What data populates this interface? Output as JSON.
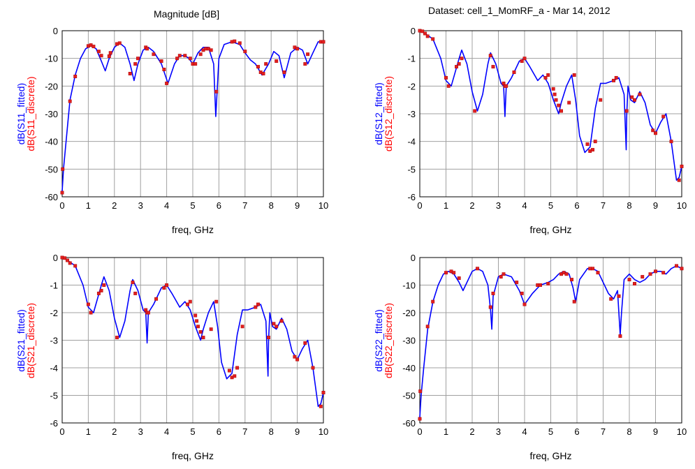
{
  "colors": {
    "fitted": "#0000ff",
    "discrete": "#ff0000",
    "grid": "#a0a0a0",
    "marker": "#e02020"
  },
  "header": {
    "left_title": "Magnitude [dB]",
    "right_title": "Dataset: cell_1_MomRF_a - Mar 14, 2012"
  },
  "chart_data": [
    {
      "type": "line",
      "xlabel": "freq, GHz",
      "ylabel_fitted": "dB(S11_fitted)",
      "ylabel_discrete": "dB(S11_discrete)",
      "xlim": [
        0,
        10
      ],
      "ylim": [
        -60,
        0
      ],
      "grid": true,
      "xticks": [
        "0",
        "1",
        "2",
        "3",
        "4",
        "5",
        "6",
        "7",
        "8",
        "9",
        "10"
      ],
      "yticks": [
        "-60",
        "-50",
        "-40",
        "-30",
        "-20",
        "-10",
        "0"
      ],
      "series": [
        {
          "name": "dB(S11_fitted)",
          "x": [
            0,
            0.05,
            0.15,
            0.3,
            0.5,
            0.7,
            0.9,
            1.1,
            1.3,
            1.5,
            1.65,
            1.8,
            2.0,
            2.2,
            2.4,
            2.6,
            2.75,
            2.9,
            3.1,
            3.3,
            3.5,
            3.8,
            4.05,
            4.3,
            4.5,
            4.7,
            4.85,
            5.0,
            5.2,
            5.4,
            5.6,
            5.8,
            5.88,
            5.92,
            6.0,
            6.2,
            6.5,
            6.8,
            7.0,
            7.2,
            7.4,
            7.65,
            7.9,
            8.1,
            8.3,
            8.5,
            8.75,
            9.0,
            9.2,
            9.4,
            9.6,
            9.8,
            10
          ],
          "y": [
            -58,
            -50,
            -40,
            -25,
            -16,
            -10,
            -6.5,
            -5.5,
            -6.5,
            -11,
            -14.5,
            -10,
            -6,
            -4.5,
            -6,
            -12,
            -18,
            -12,
            -7,
            -6,
            -7.5,
            -12,
            -19,
            -12,
            -9,
            -9,
            -10,
            -12,
            -8,
            -6,
            -6,
            -12,
            -31,
            -24,
            -10,
            -5,
            -4,
            -5,
            -8,
            -10.5,
            -12,
            -16,
            -12,
            -7.5,
            -9,
            -17,
            -8,
            -6,
            -7,
            -12,
            -8,
            -4,
            -4
          ]
        },
        {
          "name": "dB(S11_discrete)",
          "x": [
            0,
            0.02,
            0.3,
            0.5,
            1.0,
            1.1,
            1.2,
            1.4,
            1.5,
            1.8,
            1.85,
            2.1,
            2.2,
            2.6,
            2.8,
            2.9,
            3.2,
            3.25,
            3.5,
            3.8,
            3.9,
            4.0,
            4.4,
            4.5,
            4.7,
            4.9,
            5.0,
            5.1,
            5.3,
            5.4,
            5.5,
            5.6,
            5.7,
            5.9,
            6.5,
            6.6,
            6.8,
            7.0,
            7.5,
            7.6,
            7.7,
            7.8,
            8.2,
            8.5,
            8.9,
            9.0,
            9.3,
            9.4,
            9.9,
            10.0
          ],
          "y": [
            -58.5,
            -50,
            -25.5,
            -16.5,
            -5.5,
            -5.2,
            -5.7,
            -7.5,
            -9,
            -9.2,
            -8,
            -4.8,
            -4.5,
            -15.5,
            -12,
            -10,
            -6,
            -6.5,
            -8.5,
            -11,
            -14,
            -19,
            -10,
            -9,
            -9,
            -10,
            -12,
            -12,
            -8.5,
            -7,
            -6.5,
            -6.5,
            -7,
            -22,
            -4,
            -3.8,
            -4.5,
            -7.5,
            -13,
            -15,
            -15.5,
            -12,
            -11,
            -15,
            -6,
            -6.5,
            -12,
            -8.5,
            -4,
            -4
          ]
        }
      ]
    },
    {
      "type": "line",
      "xlabel": "freq, GHz",
      "ylabel_fitted": "dB(S12_fitted)",
      "ylabel_discrete": "dB(S12_discrete)",
      "xlim": [
        0,
        10
      ],
      "ylim": [
        -6,
        0
      ],
      "grid": true,
      "xticks": [
        "0",
        "1",
        "2",
        "3",
        "4",
        "5",
        "6",
        "7",
        "8",
        "9",
        "10"
      ],
      "yticks": [
        "-6",
        "-5",
        "-4",
        "-3",
        "-2",
        "-1",
        "0"
      ],
      "series": [
        {
          "name": "dB(S12_fitted)",
          "x": [
            0,
            0.2,
            0.5,
            0.8,
            1.0,
            1.2,
            1.5,
            1.6,
            1.8,
            2.0,
            2.2,
            2.4,
            2.6,
            2.7,
            2.9,
            3.1,
            3.2,
            3.25,
            3.3,
            3.5,
            3.8,
            4.0,
            4.2,
            4.5,
            4.7,
            4.9,
            5.1,
            5.3,
            5.4,
            5.6,
            5.8,
            5.95,
            6.1,
            6.3,
            6.5,
            6.7,
            6.9,
            7.1,
            7.4,
            7.6,
            7.8,
            7.88,
            7.9,
            7.95,
            8.05,
            8.2,
            8.4,
            8.6,
            8.8,
            9.0,
            9.2,
            9.4,
            9.6,
            9.8,
            9.9,
            10
          ],
          "y": [
            0,
            -0.1,
            -0.3,
            -1.0,
            -1.8,
            -2.0,
            -1.0,
            -0.7,
            -1.2,
            -2.2,
            -2.9,
            -2.3,
            -1.2,
            -0.8,
            -1.2,
            -1.9,
            -2.0,
            -3.1,
            -2.0,
            -1.7,
            -1.1,
            -1.0,
            -1.3,
            -1.8,
            -1.6,
            -1.9,
            -2.5,
            -3.0,
            -2.6,
            -2.0,
            -1.6,
            -2.5,
            -3.8,
            -4.4,
            -4.2,
            -2.8,
            -1.9,
            -1.9,
            -1.8,
            -1.7,
            -2.3,
            -4.3,
            -3.0,
            -2.0,
            -2.5,
            -2.6,
            -2.2,
            -2.6,
            -3.4,
            -3.7,
            -3.3,
            -3.0,
            -4.0,
            -5.4,
            -5.3,
            -4.9
          ]
        },
        {
          "name": "dB(S12_discrete)",
          "x": [
            0,
            0.1,
            0.2,
            0.3,
            0.5,
            1.0,
            1.1,
            1.4,
            1.5,
            1.6,
            2.1,
            2.7,
            2.8,
            3.2,
            3.25,
            3.3,
            3.6,
            3.9,
            4.0,
            4.8,
            4.9,
            5.1,
            5.15,
            5.2,
            5.3,
            5.4,
            5.7,
            5.9,
            6.4,
            6.5,
            6.6,
            6.7,
            6.9,
            7.4,
            7.5,
            7.9,
            8.1,
            8.2,
            8.4,
            8.9,
            9.0,
            9.3,
            9.6,
            9.9,
            10.0
          ],
          "y": [
            0,
            -0.02,
            -0.1,
            -0.2,
            -0.3,
            -1.7,
            -2.0,
            -1.3,
            -1.2,
            -1.0,
            -2.9,
            -0.9,
            -1.3,
            -1.9,
            -2.0,
            -2.0,
            -1.5,
            -1.1,
            -1.0,
            -1.7,
            -1.6,
            -2.1,
            -2.3,
            -2.5,
            -2.7,
            -2.9,
            -2.6,
            -1.6,
            -4.1,
            -4.35,
            -4.3,
            -4.0,
            -2.5,
            -1.8,
            -1.7,
            -2.9,
            -2.4,
            -2.5,
            -2.3,
            -3.6,
            -3.7,
            -3.1,
            -4.0,
            -5.4,
            -4.9
          ]
        }
      ]
    },
    {
      "type": "line",
      "xlabel": "freq, GHz",
      "ylabel_fitted": "dB(S21_fitted)",
      "ylabel_discrete": "dB(S21_discrete)",
      "xlim": [
        0,
        10
      ],
      "ylim": [
        -6,
        0
      ],
      "grid": true,
      "xticks": [
        "0",
        "1",
        "2",
        "3",
        "4",
        "5",
        "6",
        "7",
        "8",
        "9",
        "10"
      ],
      "yticks": [
        "-6",
        "-5",
        "-4",
        "-3",
        "-2",
        "-1",
        "0"
      ],
      "series": [
        {
          "name": "dB(S21_fitted)",
          "x": [
            0,
            0.2,
            0.5,
            0.8,
            1.0,
            1.2,
            1.5,
            1.6,
            1.8,
            2.0,
            2.2,
            2.4,
            2.6,
            2.7,
            2.9,
            3.1,
            3.2,
            3.25,
            3.3,
            3.5,
            3.8,
            4.0,
            4.2,
            4.5,
            4.7,
            4.9,
            5.1,
            5.3,
            5.4,
            5.6,
            5.8,
            5.95,
            6.1,
            6.3,
            6.5,
            6.7,
            6.9,
            7.1,
            7.4,
            7.6,
            7.8,
            7.88,
            7.9,
            7.95,
            8.05,
            8.2,
            8.4,
            8.6,
            8.8,
            9.0,
            9.2,
            9.4,
            9.6,
            9.8,
            9.9,
            10
          ],
          "y": [
            0,
            -0.1,
            -0.3,
            -1.0,
            -1.8,
            -2.0,
            -1.0,
            -0.7,
            -1.2,
            -2.2,
            -2.9,
            -2.3,
            -1.2,
            -0.8,
            -1.2,
            -1.9,
            -2.0,
            -3.1,
            -2.0,
            -1.7,
            -1.1,
            -1.0,
            -1.3,
            -1.8,
            -1.6,
            -1.9,
            -2.5,
            -3.0,
            -2.6,
            -2.0,
            -1.6,
            -2.5,
            -3.8,
            -4.4,
            -4.2,
            -2.8,
            -1.9,
            -1.9,
            -1.8,
            -1.7,
            -2.3,
            -4.3,
            -3.0,
            -2.0,
            -2.5,
            -2.6,
            -2.2,
            -2.6,
            -3.4,
            -3.7,
            -3.3,
            -3.0,
            -4.0,
            -5.4,
            -5.3,
            -4.9
          ]
        },
        {
          "name": "dB(S21_discrete)",
          "x": [
            0,
            0.1,
            0.2,
            0.3,
            0.5,
            1.0,
            1.1,
            1.4,
            1.5,
            1.6,
            2.1,
            2.7,
            2.8,
            3.2,
            3.25,
            3.3,
            3.6,
            3.9,
            4.0,
            4.8,
            4.9,
            5.1,
            5.15,
            5.2,
            5.3,
            5.4,
            5.7,
            5.9,
            6.4,
            6.5,
            6.6,
            6.7,
            6.9,
            7.4,
            7.5,
            7.9,
            8.1,
            8.2,
            8.4,
            8.9,
            9.0,
            9.3,
            9.6,
            9.9,
            10.0
          ],
          "y": [
            0,
            -0.02,
            -0.1,
            -0.2,
            -0.3,
            -1.7,
            -2.0,
            -1.3,
            -1.2,
            -1.0,
            -2.9,
            -0.9,
            -1.3,
            -1.9,
            -2.0,
            -2.0,
            -1.5,
            -1.1,
            -1.0,
            -1.7,
            -1.6,
            -2.1,
            -2.3,
            -2.5,
            -2.7,
            -2.9,
            -2.6,
            -1.6,
            -4.1,
            -4.35,
            -4.3,
            -4.0,
            -2.5,
            -1.8,
            -1.7,
            -2.9,
            -2.4,
            -2.5,
            -2.3,
            -3.6,
            -3.7,
            -3.1,
            -4.0,
            -5.4,
            -4.9
          ]
        }
      ]
    },
    {
      "type": "line",
      "xlabel": "freq, GHz",
      "ylabel_fitted": "dB(S22_fitted)",
      "ylabel_discrete": "dB(S22_discrete)",
      "xlim": [
        0,
        10
      ],
      "ylim": [
        -60,
        0
      ],
      "grid": true,
      "xticks": [
        "0",
        "1",
        "2",
        "3",
        "4",
        "5",
        "6",
        "7",
        "8",
        "9",
        "10"
      ],
      "yticks": [
        "-60",
        "-50",
        "-40",
        "-30",
        "-20",
        "-10",
        "0"
      ],
      "series": [
        {
          "name": "dB(S22_fitted)",
          "x": [
            0,
            0.05,
            0.15,
            0.3,
            0.5,
            0.7,
            0.9,
            1.1,
            1.3,
            1.5,
            1.65,
            1.8,
            2.0,
            2.2,
            2.4,
            2.6,
            2.7,
            2.75,
            2.8,
            3.0,
            3.2,
            3.5,
            3.8,
            4.0,
            4.3,
            4.6,
            4.9,
            5.1,
            5.3,
            5.5,
            5.7,
            5.85,
            5.95,
            6.1,
            6.4,
            6.6,
            6.8,
            7.0,
            7.2,
            7.4,
            7.55,
            7.65,
            7.7,
            7.8,
            8.0,
            8.2,
            8.4,
            8.6,
            8.8,
            9.0,
            9.2,
            9.4,
            9.6,
            9.8,
            10
          ],
          "y": [
            -58,
            -50,
            -40,
            -26,
            -16,
            -10,
            -6,
            -5,
            -6,
            -9,
            -12,
            -9,
            -5,
            -4,
            -5,
            -10,
            -19,
            -26,
            -14,
            -7,
            -6,
            -7,
            -12,
            -17,
            -13,
            -10,
            -9,
            -8,
            -6,
            -5,
            -6,
            -11,
            -16,
            -8,
            -4,
            -4,
            -5,
            -9,
            -13,
            -15,
            -12,
            -28,
            -20,
            -8,
            -6,
            -8,
            -9,
            -8,
            -6,
            -5,
            -5,
            -6,
            -4,
            -3,
            -4
          ]
        },
        {
          "name": "dB(S22_discrete)",
          "x": [
            0,
            0.02,
            0.3,
            0.5,
            1.0,
            1.2,
            1.3,
            1.5,
            2.2,
            2.7,
            2.8,
            3.1,
            3.2,
            3.7,
            3.9,
            4.0,
            4.5,
            4.6,
            4.9,
            5.4,
            5.5,
            5.6,
            5.8,
            5.9,
            6.5,
            6.6,
            6.8,
            7.3,
            7.6,
            7.65,
            8.0,
            8.2,
            8.5,
            8.8,
            9.0,
            9.3,
            9.8,
            10.0
          ],
          "y": [
            -58.5,
            -48.5,
            -25,
            -16,
            -5.5,
            -5,
            -5.5,
            -7.5,
            -4,
            -18,
            -13,
            -7,
            -6,
            -9,
            -13,
            -17,
            -10,
            -10,
            -9.5,
            -6,
            -5.5,
            -6,
            -8,
            -16,
            -4,
            -4,
            -5.5,
            -15,
            -14,
            -28.5,
            -8,
            -9.5,
            -7,
            -6,
            -5,
            -5.5,
            -3,
            -4
          ]
        }
      ]
    }
  ]
}
